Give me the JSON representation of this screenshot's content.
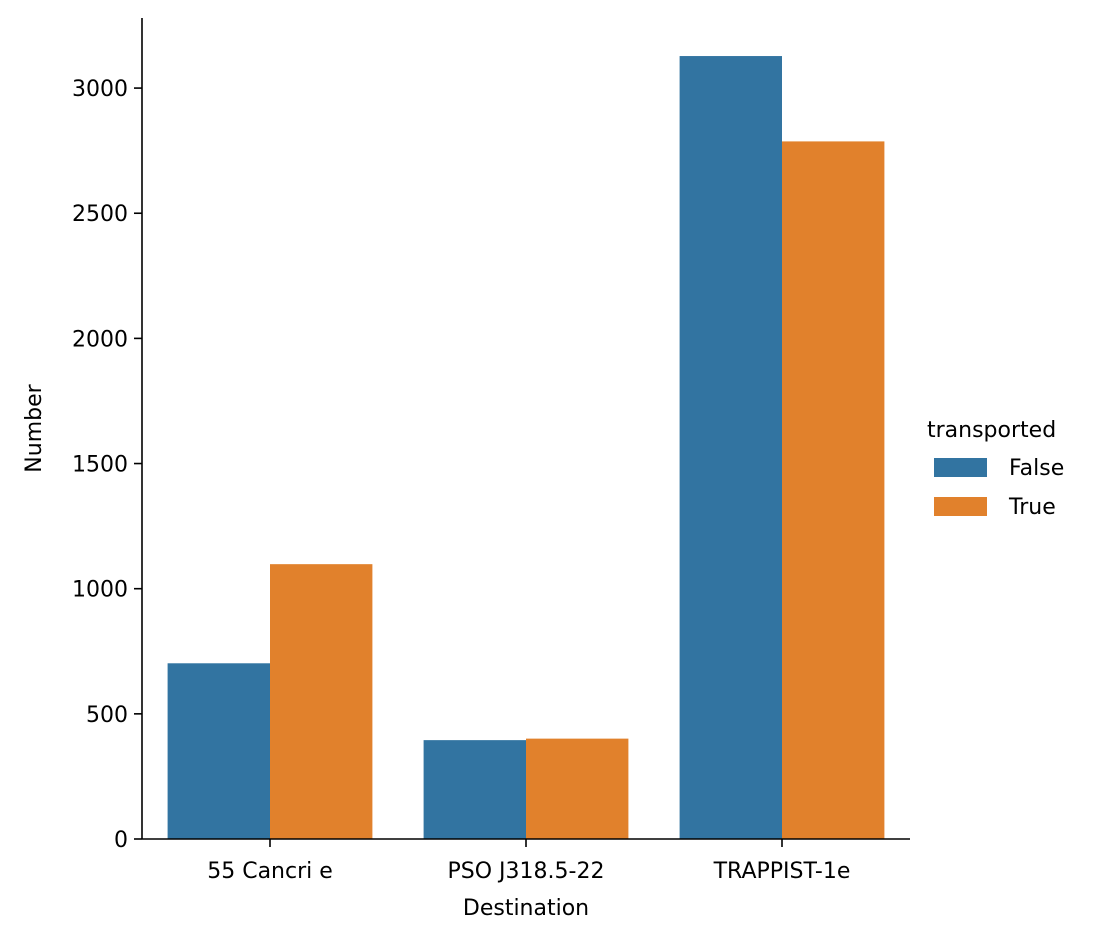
{
  "chart_data": {
    "type": "bar",
    "xlabel": "Destination",
    "ylabel": "Number",
    "categories": [
      "55 Cancri e",
      "PSO J318.5-22",
      "TRAPPIST-1e"
    ],
    "series": [
      {
        "name": "False",
        "values": [
          702,
          395,
          3128
        ],
        "color": "#3274a1"
      },
      {
        "name": "True",
        "values": [
          1098,
          401,
          2787
        ],
        "color": "#e1812c"
      }
    ],
    "ylim": [
      0,
      3280
    ],
    "yticks": [
      0,
      500,
      1000,
      1500,
      2000,
      2500,
      3000
    ],
    "grid": false,
    "legend": {
      "title": "transported",
      "placement": "right"
    }
  }
}
